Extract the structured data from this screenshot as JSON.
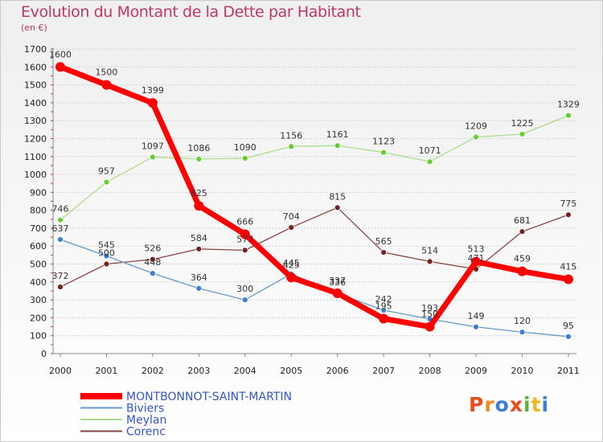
{
  "title": "Evolution du Montant de la Dette par Habitant",
  "subtitle": "(en €)",
  "logo": "Proxiti",
  "logo_colors": [
    "#e84d1c",
    "#f28a1e",
    "#3a7fd5",
    "#e84d1c",
    "#5bb33a",
    "#f2b51e",
    "#3a7fd5"
  ],
  "chart_data": {
    "type": "line",
    "title": "Evolution du Montant de la Dette par Habitant",
    "ylabel": "(en €)",
    "xlabel": "",
    "ylim": [
      0,
      1700
    ],
    "yticks": [
      0,
      100,
      200,
      300,
      400,
      500,
      600,
      700,
      800,
      900,
      1000,
      1100,
      1200,
      1300,
      1400,
      1500,
      1600,
      1700
    ],
    "grid": "horizontal dashed",
    "legend": "bottom-left",
    "x": [
      "2000",
      "2001",
      "2002",
      "2003",
      "2004",
      "2005",
      "2006",
      "2007",
      "2008",
      "2009",
      "2010",
      "2011"
    ],
    "series": [
      {
        "name": "MONTBONNOT-SAINT-MARTIN",
        "color": "#ff0000",
        "marker": "#ff0000",
        "values": [
          1600,
          1500,
          1399,
          825,
          666,
          425,
          337,
          195,
          150,
          513,
          459,
          415
        ],
        "labels": [
          "1600",
          "1500",
          "1399",
          "825",
          "666",
          "425",
          "337",
          "195",
          "150",
          "513",
          "459",
          "415"
        ]
      },
      {
        "name": "Biviers",
        "color": "#6699cc",
        "marker": "#3a7fd5",
        "values": [
          637,
          545,
          448,
          364,
          300,
          445,
          336,
          242,
          193,
          149,
          120,
          95
        ],
        "labels": [
          "637",
          "545",
          "448",
          "364",
          "300",
          "445",
          "336",
          "242",
          "193",
          "149",
          "120",
          "95"
        ]
      },
      {
        "name": "Meylan",
        "color": "#aadd88",
        "marker": "#66cc33",
        "values": [
          746,
          957,
          1097,
          1086,
          1090,
          1156,
          1161,
          1123,
          1071,
          1209,
          1225,
          1329
        ],
        "labels": [
          "746",
          "957",
          "1097",
          "1086",
          "1090",
          "1156",
          "1161",
          "1123",
          "1071",
          "1209",
          "1225",
          "1329"
        ]
      },
      {
        "name": "Corenc",
        "color": "#884444",
        "marker": "#772222",
        "values": [
          372,
          500,
          526,
          584,
          577,
          704,
          815,
          565,
          514,
          471,
          681,
          775
        ],
        "labels": [
          "372",
          "500",
          "526",
          "584",
          "577",
          "704",
          "815",
          "565",
          "514",
          "471",
          "681",
          "775"
        ]
      }
    ]
  }
}
